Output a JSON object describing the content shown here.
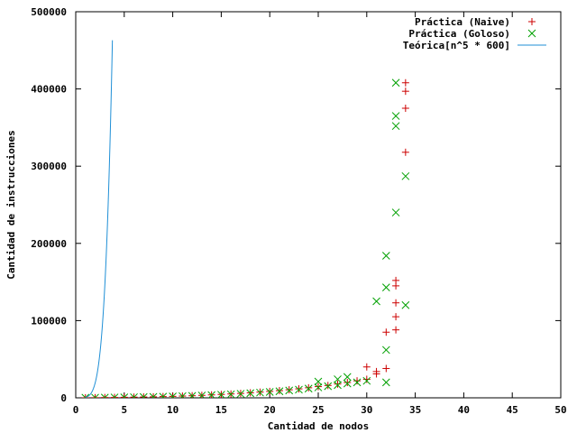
{
  "chart_data": {
    "type": "scatter",
    "title": "",
    "xlabel": "Cantidad de nodos",
    "ylabel": "Cantidad de instrucciones",
    "xlim": [
      0,
      50
    ],
    "ylim": [
      0,
      500000
    ],
    "x_ticks": [
      "0",
      "5",
      "10",
      "15",
      "20",
      "25",
      "30",
      "35",
      "40",
      "45",
      "50"
    ],
    "y_ticks": [
      "0",
      "100000",
      "200000",
      "300000",
      "400000",
      "500000"
    ],
    "grid": false,
    "legend_position": "top-right",
    "series": [
      {
        "name": "Práctica (Naive)",
        "kind": "points",
        "marker": "plus",
        "color": "#cc0000",
        "points": [
          [
            1,
            100
          ],
          [
            2,
            200
          ],
          [
            3,
            400
          ],
          [
            4,
            500
          ],
          [
            5,
            700
          ],
          [
            6,
            900
          ],
          [
            7,
            1100
          ],
          [
            8,
            1300
          ],
          [
            9,
            1600
          ],
          [
            10,
            1900
          ],
          [
            11,
            2300
          ],
          [
            12,
            2700
          ],
          [
            13,
            3200
          ],
          [
            14,
            3800
          ],
          [
            15,
            4400
          ],
          [
            16,
            5000
          ],
          [
            17,
            5700
          ],
          [
            18,
            6500
          ],
          [
            19,
            7400
          ],
          [
            20,
            8300
          ],
          [
            21,
            9300
          ],
          [
            22,
            10400
          ],
          [
            23,
            11600
          ],
          [
            24,
            13000
          ],
          [
            25,
            14500
          ],
          [
            26,
            16000
          ],
          [
            27,
            17800
          ],
          [
            28,
            19800
          ],
          [
            29,
            22000
          ],
          [
            30,
            24000
          ],
          [
            30,
            40000
          ],
          [
            31,
            34000
          ],
          [
            31,
            31000
          ],
          [
            32,
            38000
          ],
          [
            32,
            85000
          ],
          [
            33,
            88000
          ],
          [
            33,
            105000
          ],
          [
            33,
            123000
          ],
          [
            33,
            145000
          ],
          [
            33,
            152000
          ],
          [
            34,
            318000
          ],
          [
            34,
            375000
          ],
          [
            34,
            397000
          ],
          [
            34,
            408000
          ]
        ]
      },
      {
        "name": "Práctica (Goloso)",
        "kind": "points",
        "marker": "cross",
        "color": "#00a000",
        "points": [
          [
            1,
            100
          ],
          [
            2,
            200
          ],
          [
            3,
            300
          ],
          [
            4,
            500
          ],
          [
            5,
            600
          ],
          [
            6,
            800
          ],
          [
            7,
            1000
          ],
          [
            8,
            1200
          ],
          [
            9,
            1500
          ],
          [
            10,
            1800
          ],
          [
            11,
            2100
          ],
          [
            12,
            2500
          ],
          [
            13,
            3000
          ],
          [
            14,
            3500
          ],
          [
            15,
            4000
          ],
          [
            16,
            4600
          ],
          [
            17,
            5200
          ],
          [
            18,
            6000
          ],
          [
            19,
            6800
          ],
          [
            20,
            7600
          ],
          [
            21,
            8500
          ],
          [
            22,
            9500
          ],
          [
            23,
            10600
          ],
          [
            24,
            12000
          ],
          [
            25,
            13500
          ],
          [
            25,
            21000
          ],
          [
            26,
            15000
          ],
          [
            27,
            16500
          ],
          [
            27,
            24000
          ],
          [
            28,
            18500
          ],
          [
            28,
            27000
          ],
          [
            29,
            20000
          ],
          [
            30,
            22000
          ],
          [
            31,
            125000
          ],
          [
            32,
            20000
          ],
          [
            32,
            62000
          ],
          [
            32,
            143000
          ],
          [
            32,
            184000
          ],
          [
            33,
            240000
          ],
          [
            33,
            352000
          ],
          [
            33,
            365000
          ],
          [
            33,
            408000
          ],
          [
            34,
            120000
          ],
          [
            34,
            287000
          ]
        ]
      },
      {
        "name": "Teórica[n^5 * 600]",
        "kind": "line",
        "color": "#1f8fd6",
        "formula": "600 * n^5"
      }
    ]
  }
}
